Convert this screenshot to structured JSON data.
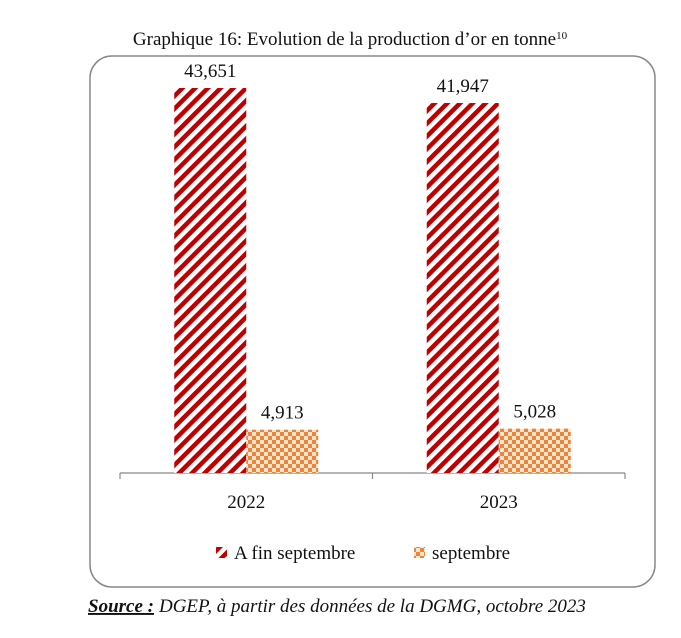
{
  "chart_data": {
    "type": "bar",
    "title": "Graphique 16: Evolution de la production d’or en tonne",
    "title_footnote": "10",
    "categories": [
      "2022",
      "2023"
    ],
    "series": [
      {
        "name": "A fin septembre",
        "color": "#c00000",
        "pattern": "stripes",
        "values": [
          43.651,
          41.947
        ],
        "value_labels": [
          "43,651",
          "41,947"
        ]
      },
      {
        "name": "septembre",
        "color": "#e8863a",
        "pattern": "checker",
        "values": [
          4.913,
          5.028
        ],
        "value_labels": [
          "4,913",
          "5,028"
        ]
      }
    ],
    "legend": "bottom"
  },
  "source_label": "Source :",
  "source_text": "DGEP, à partir des données de la DGMG, octobre 2023"
}
